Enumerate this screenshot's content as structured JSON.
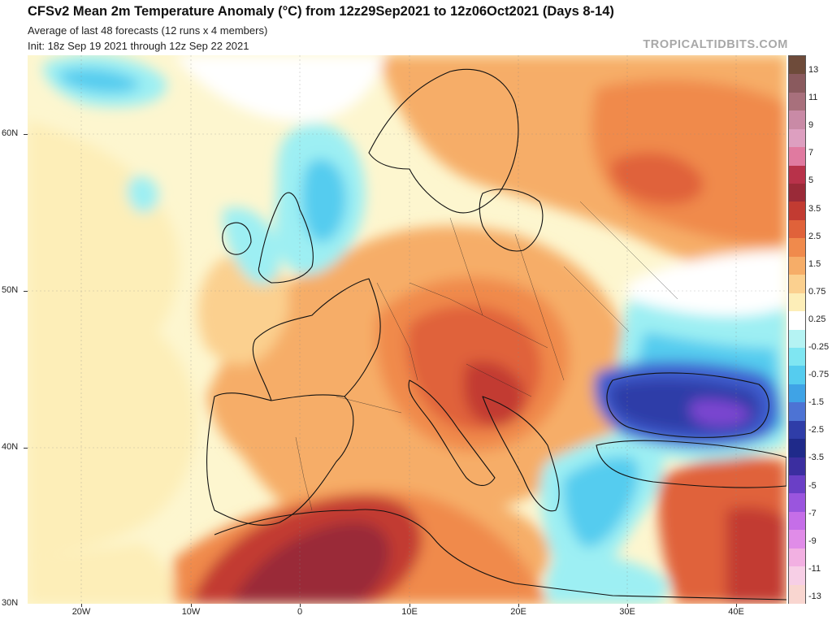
{
  "header": {
    "title": "CFSv2 Mean 2m Temperature Anomaly (°C) from 12z29Sep2021 to 12z06Oct2021 (Days 8-14)",
    "subtitle_1": "Average of last 48 forecasts (12 runs x 4 members)",
    "subtitle_2": "Init: 18z Sep 19 2021 through 12z Sep 22 2021",
    "brand": "TROPICALTIDBITS.COM"
  },
  "map": {
    "latitude_labels": [
      "60N",
      "50N",
      "40N",
      "30N"
    ],
    "longitude_labels": [
      "20W",
      "10W",
      "0",
      "10E",
      "20E",
      "30E",
      "40E"
    ]
  },
  "colorbar": {
    "labels": [
      "13",
      "11",
      "9",
      "7",
      "5",
      "3.5",
      "2.5",
      "1.5",
      "0.75",
      "0.25",
      "-0.25",
      "-0.75",
      "-1.5",
      "-2.5",
      "-3.5",
      "-5",
      "-7",
      "-9",
      "-11",
      "-13"
    ],
    "colors": [
      "#6e4b3a",
      "#8a5a5e",
      "#a8707c",
      "#c98aa6",
      "#dd9fc0",
      "#e07aa0",
      "#b8324a",
      "#9a2a38",
      "#c23b32",
      "#e0623a",
      "#f08a4c",
      "#f6ad68",
      "#fbd08f",
      "#fdeeb8",
      "#ffffff",
      "#b5f3f3",
      "#7fe6f2",
      "#55ccef",
      "#3fa3e6",
      "#4d73d4",
      "#2f3da8",
      "#1f2a8a",
      "#3b2ea0",
      "#6a3fc6",
      "#9a55de",
      "#c56ee8",
      "#e08ce8",
      "#f2b0e2",
      "#f7cfe6",
      "#f9d6d0"
    ]
  },
  "anomaly_colors": {
    "strong_warm": "#9a2a38",
    "warm": "#e0623a",
    "mild_warm": "#f6ad68",
    "slight_warm": "#fdeeb8",
    "neutral": "#ffffff",
    "slight_cool": "#9deff3",
    "cool": "#55ccef",
    "cold": "#3f5fd0",
    "very_cold": "#2f3da8",
    "coldest": "#7a45d0"
  }
}
